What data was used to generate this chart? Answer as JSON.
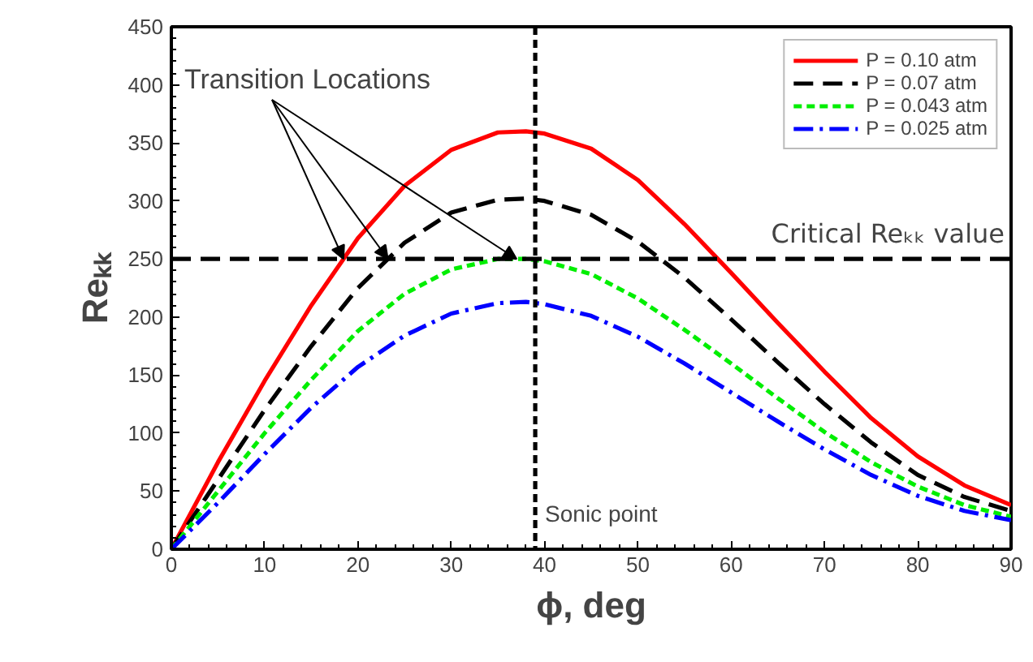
{
  "chart_data": {
    "type": "line",
    "xlabel": "ϕ, deg",
    "ylabel": "Reₖₖ",
    "x": [
      0,
      5,
      10,
      15,
      20,
      25,
      30,
      35,
      38,
      40,
      45,
      50,
      55,
      60,
      65,
      70,
      75,
      80,
      85,
      90
    ],
    "series": [
      {
        "name": "P = 0.10 atm",
        "color": "#ff0000",
        "line_style": "solid",
        "values": [
          0,
          75,
          145,
          210,
          268,
          313,
          344,
          359,
          360,
          358,
          345,
          318,
          280,
          238,
          195,
          153,
          113,
          80,
          55,
          38
        ]
      },
      {
        "name": "P = 0.07 atm",
        "color": "#000000",
        "line_style": "dashed",
        "values": [
          0,
          60,
          120,
          175,
          225,
          264,
          290,
          301,
          302,
          300,
          288,
          265,
          234,
          198,
          161,
          125,
          92,
          64,
          45,
          33
        ]
      },
      {
        "name": "P = 0.043 atm",
        "color": "#00ee00",
        "line_style": "dotted",
        "values": [
          0,
          50,
          100,
          146,
          188,
          220,
          241,
          250,
          250,
          248,
          237,
          216,
          189,
          160,
          130,
          101,
          75,
          54,
          38,
          28
        ]
      },
      {
        "name": "P = 0.025 atm",
        "color": "#0000ff",
        "line_style": "dashdot",
        "values": [
          0,
          40,
          82,
          122,
          157,
          184,
          203,
          212,
          213,
          211,
          201,
          183,
          160,
          135,
          110,
          86,
          64,
          46,
          33,
          25
        ]
      }
    ],
    "xlim": [
      0,
      90
    ],
    "ylim": [
      0,
      450
    ],
    "xticks": [
      0,
      10,
      20,
      30,
      40,
      50,
      60,
      70,
      80,
      90
    ],
    "yticks": [
      0,
      50,
      100,
      150,
      200,
      250,
      300,
      350,
      400,
      450
    ],
    "ref_lines": [
      {
        "axis": "y",
        "value": 250,
        "label": "Critical Reₖₖ value",
        "color": "#000000",
        "line_style": "dashed"
      },
      {
        "axis": "x",
        "value": 39,
        "label": "Sonic point",
        "color": "#000000",
        "line_style": "dotted"
      }
    ],
    "annotations": [
      {
        "text": "Transition Locations",
        "x": 37,
        "y": 250
      }
    ],
    "grid": false,
    "legend": "top right",
    "marker": "none"
  }
}
